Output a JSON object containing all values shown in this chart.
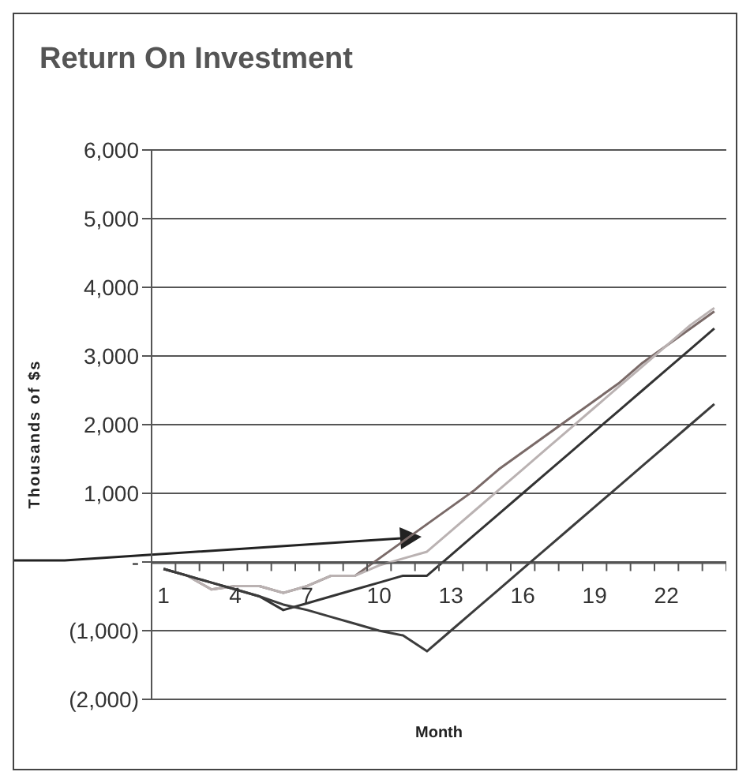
{
  "chart_data": {
    "type": "line",
    "title": "Return On Investment",
    "xlabel": "Month",
    "ylabel": "Thousands of $s",
    "x": [
      1,
      2,
      3,
      4,
      5,
      6,
      7,
      8,
      9,
      10,
      11,
      12,
      13,
      14,
      15,
      16,
      17,
      18,
      19,
      20,
      21,
      22,
      23,
      24
    ],
    "series": [
      {
        "color": "#7a6a68",
        "values": [
          -100,
          -200,
          -400,
          -350,
          -350,
          -450,
          -350,
          -200,
          -200,
          50,
          300,
          550,
          800,
          1050,
          1350,
          1600,
          1850,
          2100,
          2350,
          2600,
          2900,
          3150,
          3400,
          3650
        ]
      },
      {
        "color": "#bab2b2",
        "values": [
          -100,
          -200,
          -400,
          -350,
          -350,
          -450,
          -350,
          -200,
          -200,
          -50,
          50,
          150,
          450,
          750,
          1050,
          1350,
          1650,
          1950,
          2250,
          2550,
          2850,
          3150,
          3450,
          3700
        ]
      },
      {
        "color": "#333333",
        "values": [
          -100,
          -200,
          -300,
          -400,
          -500,
          -700,
          -600,
          -500,
          -400,
          -300,
          -200,
          -200,
          100,
          400,
          700,
          1000,
          1300,
          1600,
          1900,
          2200,
          2500,
          2800,
          3100,
          3400
        ]
      },
      {
        "color": "#3c3c3c",
        "values": [
          -100,
          -200,
          -300,
          -400,
          -500,
          -620,
          -700,
          -800,
          -900,
          -1000,
          -1070,
          -1300,
          -1000,
          -700,
          -400,
          -100,
          200,
          500,
          800,
          1100,
          1400,
          1700,
          2000,
          2300
        ]
      }
    ],
    "xlim": [
      0.5,
      24.5
    ],
    "xticks": [
      1,
      4,
      7,
      10,
      13,
      16,
      19,
      22
    ],
    "ylim": [
      -2000,
      6000
    ],
    "yticks": [
      {
        "value": -2000,
        "label": "(2,000)"
      },
      {
        "value": -1000,
        "label": "(1,000)"
      },
      {
        "value": 0,
        "label": "-"
      },
      {
        "value": 1000,
        "label": "1,000"
      },
      {
        "value": 2000,
        "label": "2,000"
      },
      {
        "value": 3000,
        "label": "3,000"
      },
      {
        "value": 4000,
        "label": "4,000"
      },
      {
        "value": 5000,
        "label": "5,000"
      },
      {
        "value": 6000,
        "label": "6,000"
      }
    ],
    "grid": "y",
    "legend": false,
    "marker": "none",
    "line_style": "solid"
  }
}
